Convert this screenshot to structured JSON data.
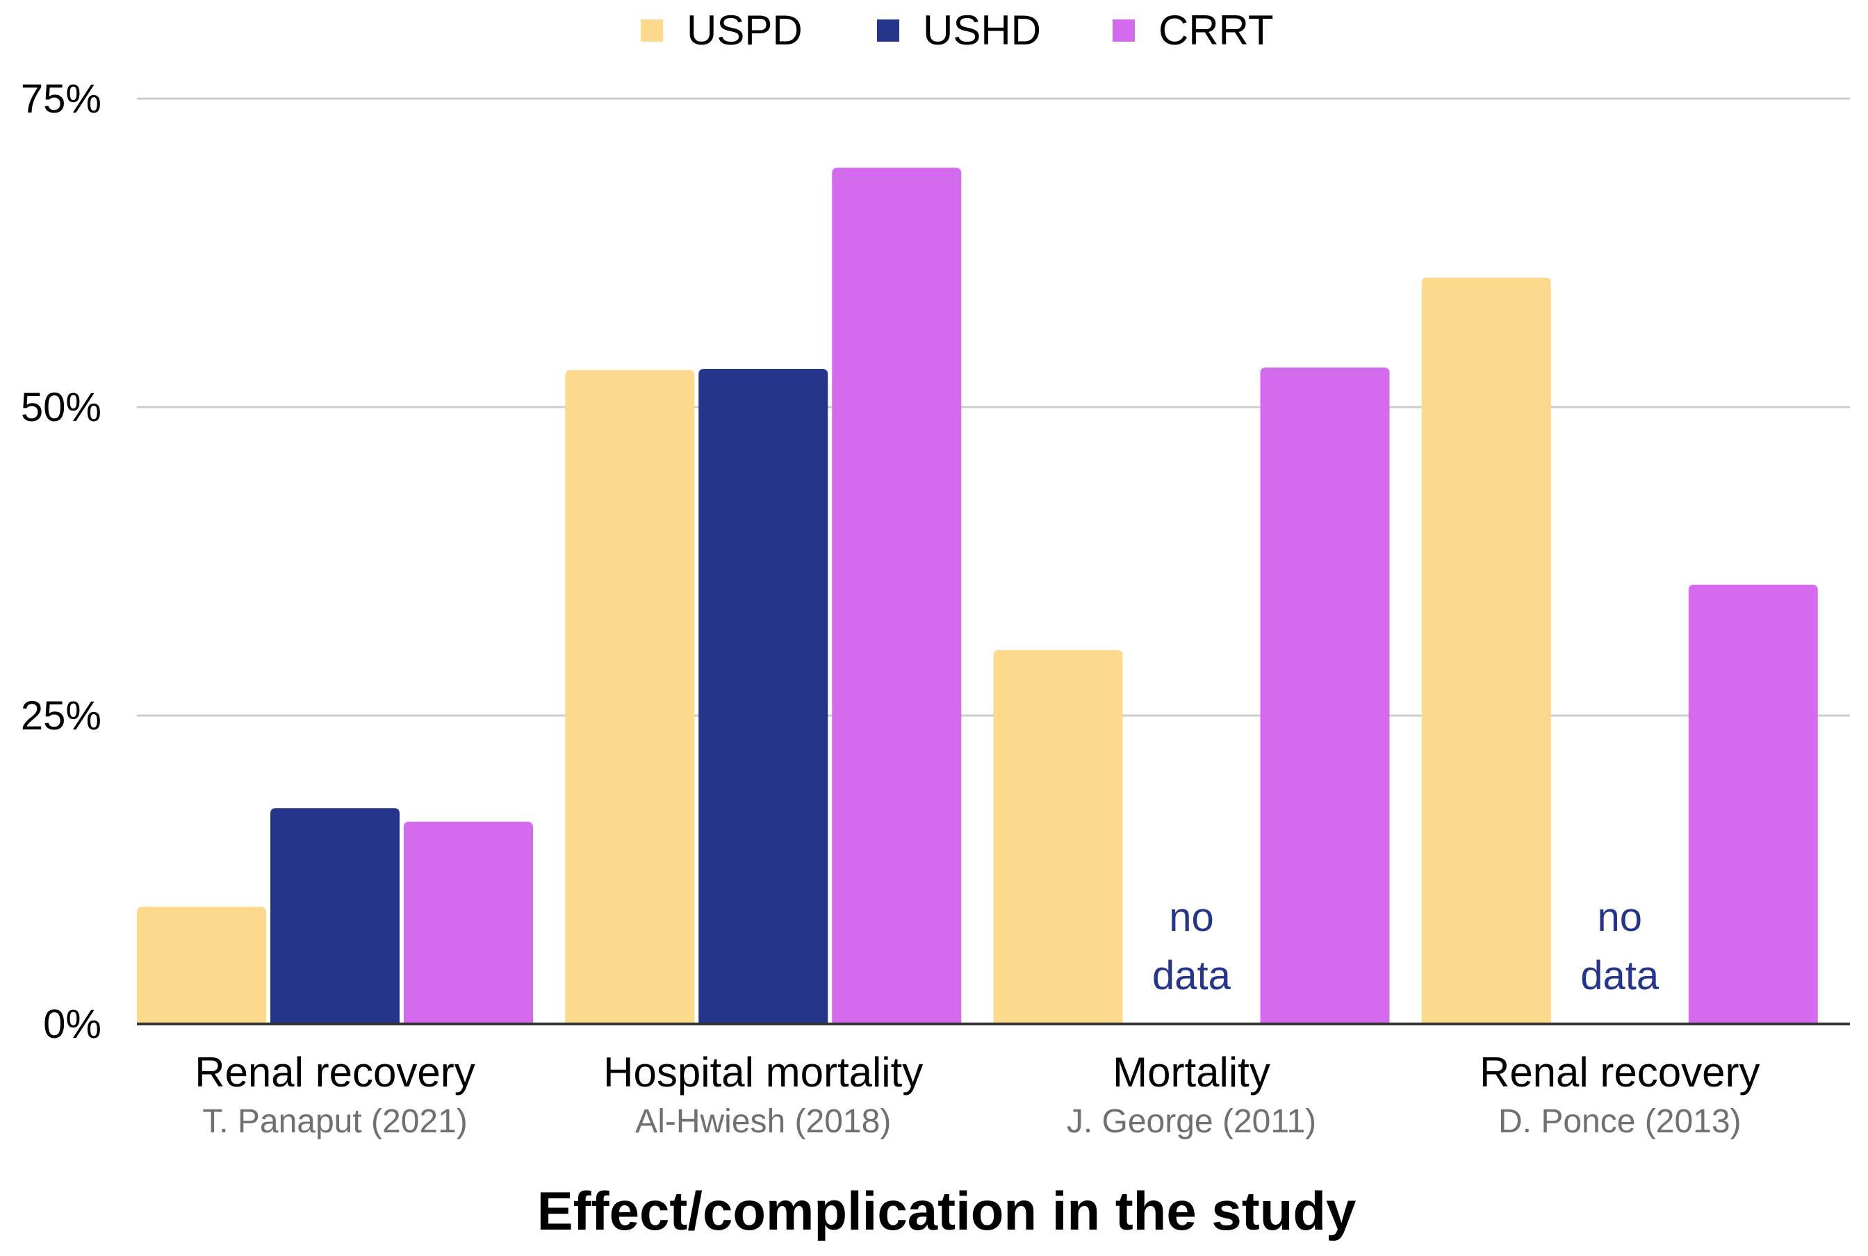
{
  "chart_data": {
    "type": "bar",
    "title": "",
    "xlabel": "Effect/complication in the study",
    "ylabel": "",
    "ylim": [
      0,
      75
    ],
    "yticks": [
      0,
      25,
      50,
      75
    ],
    "ytick_labels": [
      "0%",
      "25%",
      "50%",
      "75%"
    ],
    "grid": true,
    "legend_position": "top-center",
    "categories": [
      {
        "label": "Renal recovery",
        "sublabel": "T. Panaput (2021)"
      },
      {
        "label": "Hospital mortality",
        "sublabel": "Al-Hwiesh (2018)"
      },
      {
        "label": "Mortality",
        "sublabel": "J. George (2011)"
      },
      {
        "label": "Renal recovery",
        "sublabel": "D. Ponce (2013)"
      }
    ],
    "series": [
      {
        "name": "USPD",
        "color": "#fdd98e",
        "values": [
          9.5,
          53,
          30.3,
          60.5
        ]
      },
      {
        "name": "USHD",
        "color": "#24358a",
        "values": [
          17.5,
          53.1,
          null,
          null
        ]
      },
      {
        "name": "CRRT",
        "color": "#d46aed",
        "values": [
          16.4,
          69.4,
          53.2,
          35.6
        ]
      }
    ],
    "no_data_label": "no\ndata",
    "no_data_color": "#24358a",
    "grid_color": "#cccccc",
    "axis_color": "#333333",
    "text_color": "#000000",
    "sublabel_color": "#707070"
  }
}
